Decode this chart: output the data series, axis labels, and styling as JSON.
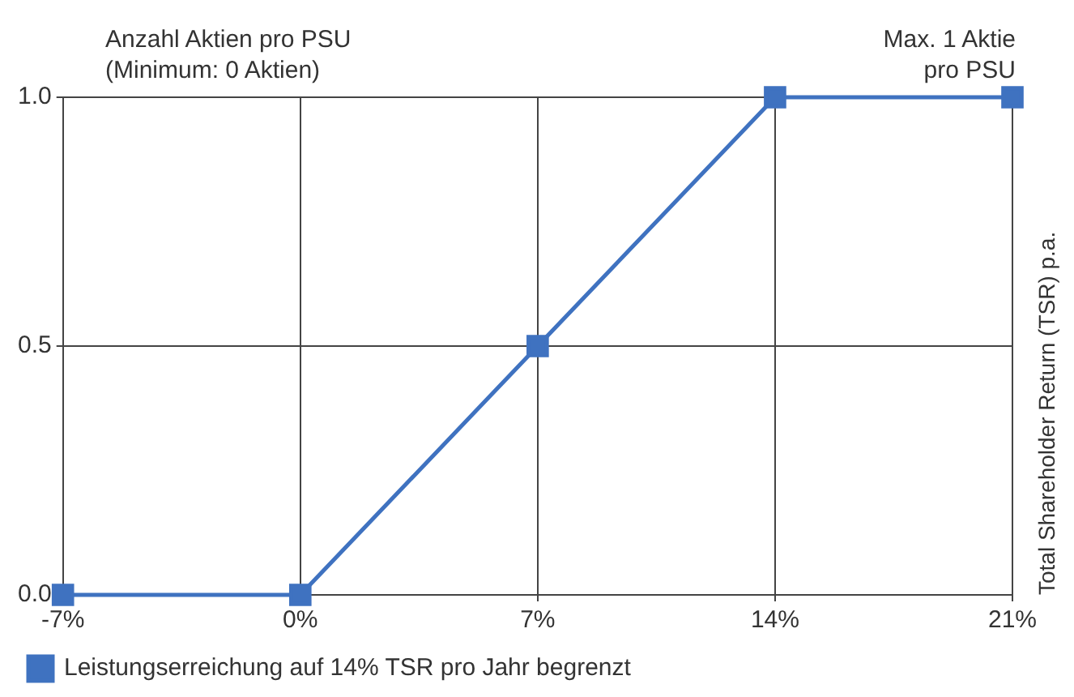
{
  "chart_data": {
    "type": "line",
    "ylabel": "Anzahl Aktien pro PSU\n(Minimum: 0 Aktien)",
    "y2label": "Total Shareholder Return (TSR) p.a.",
    "annotations": [
      "Max. 1 Aktie\npro PSU"
    ],
    "x": [
      -7,
      0,
      7,
      14,
      21
    ],
    "series": [
      {
        "name": "Leistungserreichung auf 14% TSR pro Jahr begrenzt",
        "color": "#3f72c0",
        "values": [
          0,
          0,
          0.5,
          1,
          1
        ]
      }
    ],
    "xlim": [
      -7,
      21
    ],
    "xticks": [
      {
        "value": -7,
        "label": "-7%"
      },
      {
        "value": 0,
        "label": "0%"
      },
      {
        "value": 7,
        "label": "7%"
      },
      {
        "value": 14,
        "label": "14%"
      },
      {
        "value": 21,
        "label": "21%"
      }
    ],
    "ylim": [
      0,
      1
    ],
    "yticks": [
      {
        "value": 0,
        "label": "0.0"
      },
      {
        "value": 0.5,
        "label": "0.5"
      },
      {
        "value": 1,
        "label": "1.0"
      }
    ],
    "grid": true,
    "legend": "bottom left",
    "marker": "square",
    "line_style": "solid"
  }
}
